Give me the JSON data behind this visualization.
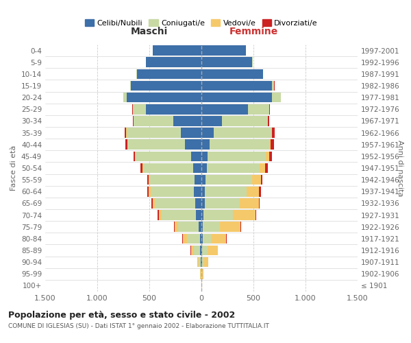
{
  "age_groups": [
    "0-4",
    "5-9",
    "10-14",
    "15-19",
    "20-24",
    "25-29",
    "30-34",
    "35-39",
    "40-44",
    "45-49",
    "50-54",
    "55-59",
    "60-64",
    "65-69",
    "70-74",
    "75-79",
    "80-84",
    "85-89",
    "90-94",
    "95-99",
    "100+"
  ],
  "birth_years": [
    "1997-2001",
    "1992-1996",
    "1987-1991",
    "1982-1986",
    "1977-1981",
    "1972-1976",
    "1967-1971",
    "1962-1966",
    "1957-1961",
    "1952-1956",
    "1947-1951",
    "1942-1946",
    "1937-1941",
    "1932-1936",
    "1927-1931",
    "1922-1926",
    "1917-1921",
    "1912-1916",
    "1907-1911",
    "1902-1906",
    "≤ 1901"
  ],
  "maschi": {
    "celibe": [
      470,
      530,
      620,
      680,
      720,
      530,
      270,
      200,
      160,
      100,
      80,
      65,
      70,
      60,
      50,
      25,
      15,
      10,
      5,
      2,
      0
    ],
    "coniugato": [
      0,
      0,
      2,
      5,
      30,
      130,
      380,
      520,
      550,
      530,
      480,
      430,
      420,
      390,
      330,
      200,
      120,
      60,
      20,
      5,
      2
    ],
    "vedovo": [
      0,
      0,
      0,
      0,
      0,
      0,
      1,
      2,
      3,
      5,
      8,
      10,
      15,
      20,
      30,
      30,
      45,
      30,
      15,
      5,
      1
    ],
    "divorziato": [
      0,
      0,
      0,
      1,
      2,
      5,
      10,
      15,
      20,
      15,
      15,
      12,
      15,
      10,
      8,
      5,
      3,
      2,
      1,
      0,
      0
    ]
  },
  "femmine": {
    "nubile": [
      430,
      490,
      590,
      680,
      680,
      450,
      200,
      120,
      80,
      60,
      50,
      40,
      35,
      30,
      20,
      15,
      10,
      8,
      5,
      2,
      0
    ],
    "coniugata": [
      0,
      2,
      5,
      20,
      80,
      200,
      430,
      550,
      570,
      560,
      510,
      450,
      400,
      340,
      280,
      160,
      80,
      50,
      20,
      5,
      2
    ],
    "vedova": [
      0,
      0,
      0,
      0,
      1,
      2,
      5,
      8,
      15,
      30,
      50,
      80,
      120,
      180,
      220,
      200,
      150,
      100,
      40,
      10,
      2
    ],
    "divorziata": [
      0,
      0,
      0,
      1,
      3,
      8,
      15,
      25,
      30,
      25,
      25,
      15,
      20,
      10,
      8,
      5,
      3,
      2,
      1,
      0,
      0
    ]
  },
  "colors": {
    "celibe": "#3d6fa8",
    "coniugato": "#c8d9a4",
    "vedovo": "#f5c96a",
    "divorziato": "#cc2222"
  },
  "title": "Popolazione per età, sesso e stato civile - 2002",
  "subtitle": "COMUNE DI IGLESIAS (SU) - Dati ISTAT 1° gennaio 2002 - Elaborazione TUTTITALIA.IT",
  "label_maschi": "Maschi",
  "label_femmine": "Femmine",
  "ylabel_left": "Fasce di età",
  "ylabel_right": "Anni di nascita",
  "xlim": 1500,
  "background_color": "#ffffff",
  "grid_color": "#cccccc",
  "legend_labels": [
    "Celibi/Nubili",
    "Coniugati/e",
    "Vedovi/e",
    "Divorziati/e"
  ]
}
